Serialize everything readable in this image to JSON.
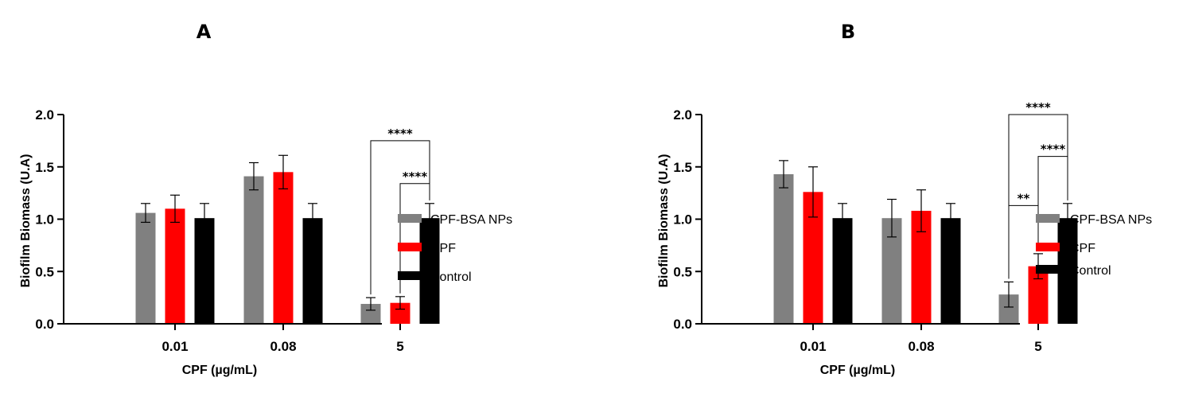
{
  "chart_data": [
    {
      "type": "bar",
      "panel_label": "A",
      "xlabel": "CPF (µg/mL)",
      "ylabel": "Biofilm Biomass (U.A)",
      "ylim": [
        0,
        2.0
      ],
      "yticks": [
        "0.0",
        "0.5",
        "1.0",
        "1.5",
        "2.0"
      ],
      "categories": [
        "0.01",
        "0.08",
        "5"
      ],
      "series": [
        {
          "name": "CPF-BSA NPs",
          "color": "#808080",
          "values": [
            1.06,
            1.41,
            0.19
          ],
          "errors": [
            0.09,
            0.13,
            0.06
          ]
        },
        {
          "name": "CPF",
          "color": "#ff0000",
          "values": [
            1.1,
            1.45,
            0.2
          ],
          "errors": [
            0.13,
            0.16,
            0.06
          ]
        },
        {
          "name": "Control",
          "color": "#000000",
          "values": [
            1.01,
            1.01,
            1.01
          ],
          "errors": [
            0.14,
            0.14,
            0.14
          ]
        }
      ],
      "legend_position": "right",
      "significance": [
        {
          "category": 2,
          "from_series": 0,
          "to_series": 2,
          "label": "****",
          "bracket_y": 1.75
        },
        {
          "category": 2,
          "from_series": 1,
          "to_series": 2,
          "label": "****",
          "bracket_y": 1.34
        }
      ]
    },
    {
      "type": "bar",
      "panel_label": "B",
      "xlabel": "CPF (µg/mL)",
      "ylabel": "Biofilm Biomass (U.A)",
      "ylim": [
        0,
        2.0
      ],
      "yticks": [
        "0.0",
        "0.5",
        "1.0",
        "1.5",
        "2.0"
      ],
      "categories": [
        "0.01",
        "0.08",
        "5"
      ],
      "series": [
        {
          "name": "CPF-BSA NPs",
          "color": "#808080",
          "values": [
            1.43,
            1.01,
            0.28
          ],
          "errors": [
            0.13,
            0.18,
            0.12
          ]
        },
        {
          "name": "CPF",
          "color": "#ff0000",
          "values": [
            1.26,
            1.08,
            0.55
          ],
          "errors": [
            0.24,
            0.2,
            0.12
          ]
        },
        {
          "name": "Control",
          "color": "#000000",
          "values": [
            1.01,
            1.01,
            1.01
          ],
          "errors": [
            0.14,
            0.14,
            0.14
          ]
        }
      ],
      "legend_position": "right",
      "significance": [
        {
          "category": 2,
          "from_series": 0,
          "to_series": 2,
          "label": "****",
          "bracket_y": 2.0
        },
        {
          "category": 2,
          "from_series": 1,
          "to_series": 2,
          "label": "****",
          "bracket_y": 1.6
        },
        {
          "category": 2,
          "from_series": 0,
          "to_series": 1,
          "label": "**",
          "bracket_y": 1.13
        }
      ]
    }
  ]
}
